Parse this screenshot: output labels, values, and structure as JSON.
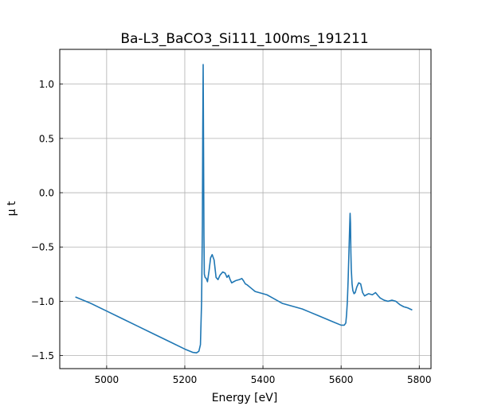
{
  "chart_data": {
    "type": "line",
    "title": "Ba-L3_BaCO3_Si111_100ms_191211",
    "xlabel": "Energy [eV]",
    "ylabel": "μ t",
    "xlim": [
      4880,
      5830
    ],
    "ylim": [
      -1.62,
      1.32
    ],
    "x_ticks": [
      5000,
      5200,
      5400,
      5600,
      5800
    ],
    "x_tick_labels": [
      "5000",
      "5200",
      "5400",
      "5600",
      "5800"
    ],
    "y_ticks": [
      -1.5,
      -1.0,
      -0.5,
      0.0,
      0.5,
      1.0
    ],
    "y_tick_labels": [
      "−1.5",
      "−1.0",
      "−0.5",
      "0.0",
      "0.5",
      "1.0"
    ],
    "grid": true,
    "line_color": "#1f77b4",
    "series": [
      {
        "x": [
          4920,
          4960,
          5000,
          5040,
          5080,
          5120,
          5160,
          5200,
          5220,
          5230,
          5236,
          5240,
          5243,
          5245,
          5246,
          5247,
          5248,
          5249,
          5250,
          5252,
          5255,
          5258,
          5262,
          5266,
          5270,
          5275,
          5280,
          5285,
          5290,
          5297,
          5303,
          5308,
          5312,
          5316,
          5320,
          5325,
          5330,
          5340,
          5346,
          5350,
          5355,
          5360,
          5370,
          5380,
          5390,
          5400,
          5410,
          5420,
          5430,
          5440,
          5450,
          5460,
          5470,
          5480,
          5490,
          5500,
          5520,
          5540,
          5560,
          5580,
          5600,
          5608,
          5612,
          5614,
          5616,
          5618,
          5620,
          5622,
          5623,
          5624,
          5625,
          5626,
          5628,
          5630,
          5633,
          5636,
          5640,
          5645,
          5650,
          5655,
          5660,
          5665,
          5670,
          5680,
          5688,
          5695,
          5700,
          5710,
          5720,
          5730,
          5740,
          5750,
          5760,
          5770,
          5782
        ],
        "y": [
          -0.96,
          -1.02,
          -1.09,
          -1.16,
          -1.23,
          -1.3,
          -1.37,
          -1.44,
          -1.47,
          -1.475,
          -1.46,
          -1.4,
          -1.0,
          -0.3,
          0.6,
          1.18,
          0.4,
          -0.4,
          -0.75,
          -0.78,
          -0.79,
          -0.82,
          -0.72,
          -0.6,
          -0.57,
          -0.62,
          -0.78,
          -0.8,
          -0.76,
          -0.73,
          -0.74,
          -0.78,
          -0.76,
          -0.8,
          -0.83,
          -0.82,
          -0.81,
          -0.8,
          -0.79,
          -0.81,
          -0.84,
          -0.85,
          -0.88,
          -0.91,
          -0.92,
          -0.93,
          -0.94,
          -0.96,
          -0.98,
          -1.0,
          -1.02,
          -1.03,
          -1.04,
          -1.05,
          -1.06,
          -1.07,
          -1.1,
          -1.13,
          -1.16,
          -1.19,
          -1.22,
          -1.22,
          -1.2,
          -1.12,
          -1.0,
          -0.8,
          -0.55,
          -0.3,
          -0.19,
          -0.28,
          -0.55,
          -0.7,
          -0.84,
          -0.9,
          -0.93,
          -0.92,
          -0.87,
          -0.83,
          -0.84,
          -0.92,
          -0.95,
          -0.94,
          -0.93,
          -0.94,
          -0.92,
          -0.95,
          -0.97,
          -0.99,
          -1.0,
          -0.99,
          -1.0,
          -1.03,
          -1.05,
          -1.06,
          -1.08
        ]
      }
    ]
  }
}
